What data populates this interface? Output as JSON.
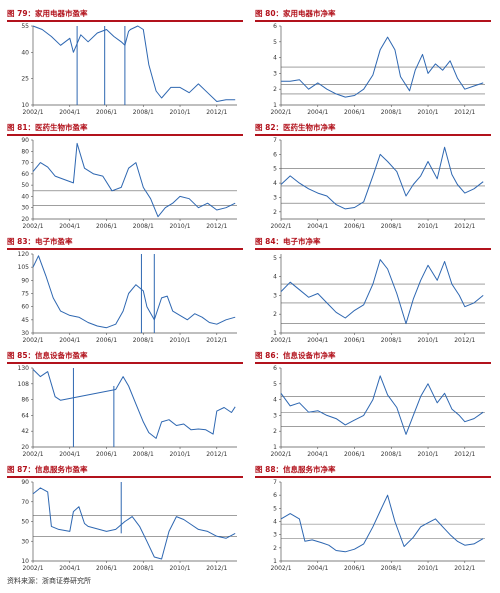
{
  "source": "资料来源：浙商证券研究所",
  "styles": {
    "line_color": "#2e67b1",
    "title_color": "#b2121c",
    "axis_color": "#555555"
  },
  "charts": [
    {
      "title": "图 79：家用电器市盈率",
      "chart_data": {
        "type": "line",
        "title": "",
        "xlabel": "",
        "ylabel": "",
        "ylim": [
          10,
          55
        ],
        "yticks": [
          10,
          25,
          40,
          55
        ],
        "xlim": [
          2002.0,
          2013.1
        ],
        "xtick_labels": [
          "2002/1",
          "2004/1",
          "2006/1",
          "2008/1",
          "2010/1",
          "2012/1"
        ],
        "ref_lines": [],
        "series": [
          {
            "x": [
              2002.0,
              2002.5,
              2003.0,
              2003.5,
              2004.0,
              2004.2,
              2004.6,
              2005.0,
              2005.5,
              2006.0,
              2006.4,
              2006.8,
              2007.0,
              2007.2,
              2007.3,
              2007.7,
              2008.0,
              2008.3,
              2008.7,
              2009.0,
              2009.5,
              2010.0,
              2010.5,
              2011.0,
              2011.5,
              2012.0,
              2012.5,
              2013.0
            ],
            "y": [
              55,
              53,
              49,
              44,
              48,
              40,
              50,
              46,
              51,
              53,
              49,
              46,
              44,
              52,
              53,
              55,
              53,
              33,
              18,
              14,
              20,
              20,
              17,
              22,
              17,
              12,
              13,
              13
            ]
          }
        ],
        "spikes": [
          {
            "x": 2004.4,
            "from": 10,
            "to": 55
          },
          {
            "x": 2005.9,
            "from": 10,
            "to": 55
          },
          {
            "x": 2007.0,
            "from": 10,
            "to": 55
          }
        ]
      }
    },
    {
      "title": "图 80：家用电器市净率",
      "chart_data": {
        "type": "line",
        "title": "",
        "xlabel": "",
        "ylabel": "",
        "ylim": [
          1,
          6
        ],
        "yticks": [
          1,
          2,
          3,
          4,
          5,
          6
        ],
        "xlim": [
          2002.0,
          2013.1
        ],
        "xtick_labels": [
          "2002/1",
          "2004/1",
          "2006/1",
          "2008/1",
          "2010/1",
          "2012/1"
        ],
        "ref_lines": [
          3.4,
          2.3,
          1.7
        ],
        "series": [
          {
            "x": [
              2002.0,
              2002.5,
              2003.0,
              2003.5,
              2004.0,
              2004.5,
              2005.0,
              2005.5,
              2006.0,
              2006.5,
              2007.0,
              2007.4,
              2007.8,
              2008.2,
              2008.5,
              2009.0,
              2009.3,
              2009.7,
              2010.0,
              2010.4,
              2010.8,
              2011.2,
              2011.6,
              2012.0,
              2012.5,
              2013.0
            ],
            "y": [
              2.5,
              2.5,
              2.6,
              2.0,
              2.4,
              2.0,
              1.7,
              1.5,
              1.6,
              2.0,
              2.9,
              4.5,
              5.3,
              4.5,
              2.8,
              1.9,
              3.2,
              4.2,
              3.0,
              3.6,
              3.2,
              3.8,
              2.7,
              2.0,
              2.2,
              2.4
            ]
          }
        ],
        "spikes": []
      }
    },
    {
      "title": "图 81：医药生物市盈率",
      "chart_data": {
        "type": "line",
        "title": "",
        "xlabel": "",
        "ylabel": "",
        "ylim": [
          20,
          90
        ],
        "yticks": [
          20,
          30,
          40,
          50,
          60,
          70,
          80,
          90
        ],
        "xlim": [
          2002.0,
          2013.1
        ],
        "xtick_labels": [
          "2002/1",
          "2004/1",
          "2006/1",
          "2008/1",
          "2010/1",
          "2012/1"
        ],
        "ref_lines": [
          45,
          32
        ],
        "series": [
          {
            "x": [
              2002.0,
              2002.4,
              2002.8,
              2003.2,
              2003.7,
              2004.2,
              2004.4,
              2004.8,
              2005.3,
              2005.8,
              2006.3,
              2006.8,
              2007.2,
              2007.6,
              2008.0,
              2008.4,
              2008.8,
              2009.2,
              2009.6,
              2010.0,
              2010.5,
              2011.0,
              2011.5,
              2012.0,
              2012.5,
              2013.0
            ],
            "y": [
              62,
              70,
              66,
              58,
              55,
              52,
              87,
              65,
              60,
              58,
              45,
              48,
              65,
              70,
              48,
              38,
              22,
              30,
              34,
              40,
              38,
              30,
              34,
              28,
              30,
              34
            ]
          }
        ],
        "spikes": []
      }
    },
    {
      "title": "图 82：医药生物市净率",
      "chart_data": {
        "type": "line",
        "title": "",
        "xlabel": "",
        "ylabel": "",
        "ylim": [
          1.5,
          7
        ],
        "yticks": [
          2,
          3,
          4,
          5,
          6,
          7
        ],
        "xlim": [
          2002.0,
          2013.1
        ],
        "xtick_labels": [
          "2002/1",
          "2004/1",
          "2006/1",
          "2008/1",
          "2010/1",
          "2012/1"
        ],
        "ref_lines": [
          5.0,
          3.8,
          2.6
        ],
        "series": [
          {
            "x": [
              2002.0,
              2002.5,
              2003.0,
              2003.5,
              2004.0,
              2004.5,
              2005.0,
              2005.5,
              2006.0,
              2006.5,
              2007.0,
              2007.4,
              2007.8,
              2008.3,
              2008.8,
              2009.2,
              2009.6,
              2010.0,
              2010.5,
              2010.9,
              2011.3,
              2011.6,
              2012.0,
              2012.5,
              2013.0
            ],
            "y": [
              3.9,
              4.5,
              4.0,
              3.6,
              3.3,
              3.1,
              2.5,
              2.2,
              2.3,
              2.7,
              4.5,
              6.0,
              5.5,
              4.8,
              3.1,
              3.9,
              4.5,
              5.5,
              4.3,
              6.5,
              4.6,
              3.9,
              3.3,
              3.6,
              4.1
            ]
          }
        ],
        "spikes": []
      }
    },
    {
      "title": "图 83：电子市盈率",
      "chart_data": {
        "type": "line",
        "title": "",
        "xlabel": "",
        "ylabel": "",
        "ylim": [
          30,
          120
        ],
        "yticks": [
          30,
          45,
          60,
          75,
          90,
          105,
          120
        ],
        "xlim": [
          2002.0,
          2013.1
        ],
        "xtick_labels": [
          "2002/1",
          "2004/1",
          "2006/1",
          "2008/1",
          "2010/1",
          "2012/1"
        ],
        "ref_lines": [],
        "series": [
          {
            "x": [
              2002.0,
              2002.3,
              2002.7,
              2003.1,
              2003.5,
              2004.0,
              2004.5,
              2005.0,
              2005.5,
              2006.0,
              2006.5,
              2006.9,
              2007.2,
              2007.6,
              2008.0,
              2008.2,
              2008.6,
              2009.0,
              2009.3,
              2009.6,
              2010.0,
              2010.4,
              2010.8,
              2011.2,
              2011.6,
              2012.0,
              2012.5,
              2013.0
            ],
            "y": [
              105,
              118,
              95,
              70,
              55,
              50,
              48,
              42,
              38,
              36,
              40,
              55,
              75,
              85,
              78,
              60,
              45,
              70,
              72,
              55,
              50,
              45,
              52,
              48,
              42,
              40,
              45,
              48
            ]
          }
        ],
        "spikes": [
          {
            "x": 2007.9,
            "from": 30,
            "to": 120
          },
          {
            "x": 2008.6,
            "from": 30,
            "to": 120
          }
        ]
      }
    },
    {
      "title": "图 84：电子市净率",
      "chart_data": {
        "type": "line",
        "title": "",
        "xlabel": "",
        "ylabel": "",
        "ylim": [
          1,
          5.2
        ],
        "yticks": [
          1,
          2,
          3,
          4,
          5
        ],
        "xlim": [
          2002.0,
          2013.1
        ],
        "xtick_labels": [
          "2002/1",
          "2004/1",
          "2006/1",
          "2008/1",
          "2010/1",
          "2012/1"
        ],
        "ref_lines": [
          3.6,
          2.6,
          1.5
        ],
        "series": [
          {
            "x": [
              2002.0,
              2002.5,
              2003.0,
              2003.5,
              2004.0,
              2004.5,
              2005.0,
              2005.5,
              2006.0,
              2006.5,
              2007.0,
              2007.4,
              2007.8,
              2008.3,
              2008.8,
              2009.2,
              2009.6,
              2010.0,
              2010.5,
              2010.9,
              2011.3,
              2011.7,
              2012.0,
              2012.5,
              2013.0
            ],
            "y": [
              3.2,
              3.7,
              3.3,
              2.9,
              3.1,
              2.6,
              2.1,
              1.8,
              2.2,
              2.5,
              3.6,
              4.9,
              4.4,
              3.1,
              1.5,
              2.8,
              3.8,
              4.6,
              3.8,
              4.8,
              3.6,
              3.0,
              2.4,
              2.6,
              3.0
            ]
          }
        ],
        "spikes": []
      }
    },
    {
      "title": "图 85：信息设备市盈率",
      "chart_data": {
        "type": "line",
        "title": "",
        "xlabel": "",
        "ylabel": "",
        "ylim": [
          20,
          130
        ],
        "yticks": [
          20,
          42,
          64,
          86,
          108,
          130
        ],
        "xlim": [
          2002.0,
          2013.1
        ],
        "xtick_labels": [
          "2002/1",
          "2004/1",
          "2006/1",
          "2008/1",
          "2010/1",
          "2012/1"
        ],
        "ref_lines": [],
        "series": [
          {
            "x": [
              2002.0,
              2002.4,
              2002.8,
              2003.2,
              2003.5,
              2006.5,
              2006.9,
              2007.2,
              2007.6,
              2008.0,
              2008.3,
              2008.7,
              2009.0,
              2009.4,
              2009.8,
              2010.2,
              2010.6,
              2011.0,
              2011.4,
              2011.8,
              2012.0,
              2012.4,
              2012.8,
              2013.0
            ],
            "y": [
              128,
              118,
              125,
              90,
              85,
              100,
              118,
              105,
              80,
              55,
              40,
              32,
              55,
              58,
              50,
              52,
              44,
              45,
              44,
              38,
              70,
              75,
              68,
              76
            ]
          }
        ],
        "spikes": [
          {
            "x": 2004.2,
            "from": 20,
            "to": 130
          },
          {
            "x": 2006.4,
            "from": 20,
            "to": 105
          }
        ]
      }
    },
    {
      "title": "图 86：信息设备市净率",
      "chart_data": {
        "type": "line",
        "title": "",
        "xlabel": "",
        "ylabel": "",
        "ylim": [
          1,
          6
        ],
        "yticks": [
          1,
          2,
          3,
          4,
          5,
          6
        ],
        "xlim": [
          2002.0,
          2013.1
        ],
        "xtick_labels": [
          "2002/1",
          "2004/1",
          "2006/1",
          "2008/1",
          "2010/1",
          "2012/1"
        ],
        "ref_lines": [
          4.2,
          3.2,
          2.3
        ],
        "series": [
          {
            "x": [
              2002.0,
              2002.5,
              2003.0,
              2003.5,
              2004.0,
              2004.5,
              2005.0,
              2005.5,
              2006.0,
              2006.5,
              2007.0,
              2007.4,
              2007.8,
              2008.3,
              2008.8,
              2009.2,
              2009.6,
              2010.0,
              2010.5,
              2010.9,
              2011.3,
              2011.7,
              2012.0,
              2012.5,
              2013.0
            ],
            "y": [
              4.4,
              3.6,
              3.8,
              3.2,
              3.3,
              3.0,
              2.8,
              2.4,
              2.7,
              3.0,
              4.0,
              5.5,
              4.3,
              3.5,
              1.8,
              3.0,
              4.2,
              5.0,
              3.8,
              4.4,
              3.4,
              3.0,
              2.6,
              2.8,
              3.2
            ]
          }
        ],
        "spikes": []
      }
    },
    {
      "title": "图 87：信息服务市盈率",
      "chart_data": {
        "type": "line",
        "title": "",
        "xlabel": "",
        "ylabel": "",
        "ylim": [
          10,
          90
        ],
        "yticks": [
          10,
          30,
          50,
          70,
          90
        ],
        "xlim": [
          2002.0,
          2013.1
        ],
        "xtick_labels": [
          "2002/1",
          "2004/1",
          "2006/1",
          "2008/1",
          "2010/1",
          "2012/1"
        ],
        "ref_lines": [
          56,
          35
        ],
        "series": [
          {
            "x": [
              2002.0,
              2002.4,
              2002.8,
              2003.0,
              2003.4,
              2004.0,
              2004.2,
              2004.5,
              2004.8,
              2005.0,
              2006.0,
              2006.5,
              2007.0,
              2007.4,
              2007.8,
              2008.2,
              2008.6,
              2009.0,
              2009.4,
              2009.8,
              2010.2,
              2010.6,
              2011.0,
              2011.5,
              2012.0,
              2012.5,
              2013.0
            ],
            "y": [
              78,
              84,
              80,
              45,
              42,
              40,
              60,
              65,
              48,
              45,
              40,
              42,
              50,
              55,
              45,
              30,
              14,
              12,
              40,
              55,
              52,
              47,
              42,
              40,
              35,
              33,
              38
            ]
          }
        ],
        "spikes": [
          {
            "x": 2006.8,
            "from": 38,
            "to": 90
          }
        ]
      }
    },
    {
      "title": "图 88：信息服务市净率",
      "chart_data": {
        "type": "line",
        "title": "",
        "xlabel": "",
        "ylabel": "",
        "ylim": [
          1,
          7
        ],
        "yticks": [
          1,
          2,
          3,
          4,
          5,
          6,
          7
        ],
        "xlim": [
          2002.0,
          2013.1
        ],
        "xtick_labels": [
          "2002/1",
          "2004/1",
          "2006/1",
          "2008/1",
          "2010/1",
          "2012/1"
        ],
        "ref_lines": [
          3.8,
          2.7
        ],
        "series": [
          {
            "x": [
              2002.0,
              2002.5,
              2003.0,
              2003.3,
              2003.7,
              2004.2,
              2004.6,
              2005.0,
              2005.5,
              2006.0,
              2006.5,
              2007.0,
              2007.4,
              2007.8,
              2008.2,
              2008.7,
              2009.2,
              2009.6,
              2010.0,
              2010.4,
              2010.8,
              2011.2,
              2011.6,
              2012.0,
              2012.5,
              2013.0
            ],
            "y": [
              4.2,
              4.6,
              4.2,
              2.5,
              2.6,
              2.4,
              2.2,
              1.8,
              1.7,
              1.9,
              2.3,
              3.6,
              4.8,
              6.0,
              4.0,
              2.1,
              2.8,
              3.6,
              3.9,
              4.2,
              3.6,
              3.0,
              2.5,
              2.2,
              2.3,
              2.7
            ]
          }
        ],
        "spikes": []
      }
    }
  ]
}
